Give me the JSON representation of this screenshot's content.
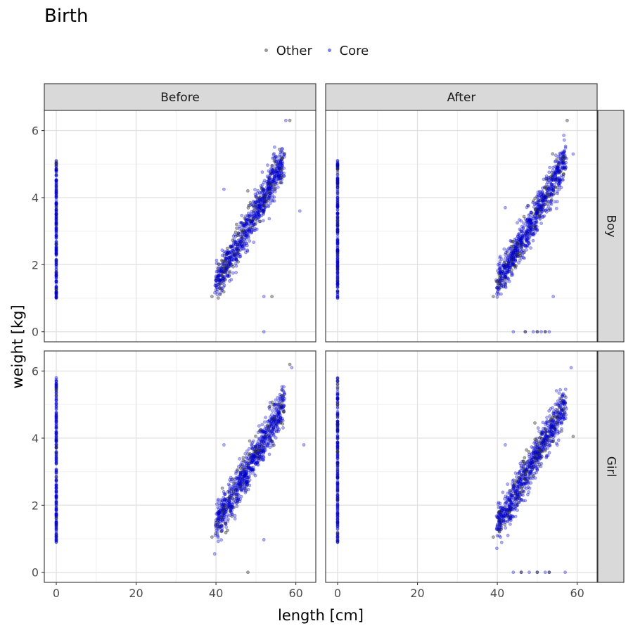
{
  "chart_data": {
    "type": "scatter",
    "title": "Birth",
    "xlabel": "length [cm]",
    "ylabel": "weight [kg]",
    "xlim": [
      -3,
      65
    ],
    "ylim": [
      -0.3,
      6.6
    ],
    "xticks": [
      0,
      20,
      40,
      60
    ],
    "yticks": [
      0,
      2,
      4,
      6
    ],
    "grid": true,
    "legend_position": "top",
    "facet_cols": [
      "Before",
      "After"
    ],
    "facet_rows": [
      "Boy",
      "Girl"
    ],
    "series": [
      {
        "name": "Other",
        "color": "#333333"
      },
      {
        "name": "Core",
        "color": "#0000cc"
      }
    ],
    "panels": [
      {
        "col": "Before",
        "row": "Boy",
        "zero_length_weights": [
          1.0,
          1.5,
          2.0,
          2.5,
          3.0,
          3.5,
          4.0,
          4.5,
          5.1
        ],
        "trend": {
          "x_start": 40,
          "y_start": 1.4,
          "x_end": 57,
          "y_end": 5.1
        },
        "extreme_points": [
          [
            39,
            1.05
          ],
          [
            42,
            4.25
          ],
          [
            52,
            1.05
          ],
          [
            54,
            1.05
          ],
          [
            52,
            0.0
          ],
          [
            57.5,
            6.3
          ],
          [
            58.5,
            6.3
          ],
          [
            61,
            3.6
          ]
        ]
      },
      {
        "col": "After",
        "row": "Boy",
        "zero_length_weights": [
          1.0,
          1.5,
          2.0,
          2.5,
          3.0,
          3.5,
          4.0,
          4.5,
          5.1
        ],
        "trend": {
          "x_start": 40,
          "y_start": 1.4,
          "x_end": 57,
          "y_end": 5.1
        },
        "extreme_points": [
          [
            39,
            1.05
          ],
          [
            42,
            3.7
          ],
          [
            54,
            1.05
          ],
          [
            57.5,
            6.3
          ],
          [
            59,
            5.3
          ]
        ],
        "zero_weight_lengths": [
          44,
          47,
          49,
          50,
          51,
          52,
          53
        ]
      },
      {
        "col": "Before",
        "row": "Girl",
        "zero_length_weights": [
          0.9,
          1.5,
          2.0,
          2.5,
          3.0,
          3.5,
          4.0,
          4.5,
          5.2,
          5.8
        ],
        "trend": {
          "x_start": 40,
          "y_start": 1.4,
          "x_end": 57,
          "y_end": 5.0
        },
        "extreme_points": [
          [
            39,
            1.05
          ],
          [
            42,
            3.8
          ],
          [
            52,
            0.97
          ],
          [
            48,
            0.0
          ],
          [
            59,
            6.1
          ],
          [
            62,
            3.8
          ],
          [
            58.5,
            6.2
          ]
        ]
      },
      {
        "col": "After",
        "row": "Girl",
        "zero_length_weights": [
          0.9,
          1.5,
          2.0,
          2.5,
          3.0,
          3.5,
          4.0,
          4.5,
          5.2,
          5.8
        ],
        "trend": {
          "x_start": 40,
          "y_start": 1.4,
          "x_end": 57,
          "y_end": 5.0
        },
        "extreme_points": [
          [
            39,
            1.05
          ],
          [
            42,
            3.8
          ],
          [
            58.5,
            6.1
          ],
          [
            59,
            4.05
          ]
        ],
        "zero_weight_lengths": [
          44,
          46,
          48,
          50,
          52,
          53,
          57
        ]
      }
    ]
  }
}
